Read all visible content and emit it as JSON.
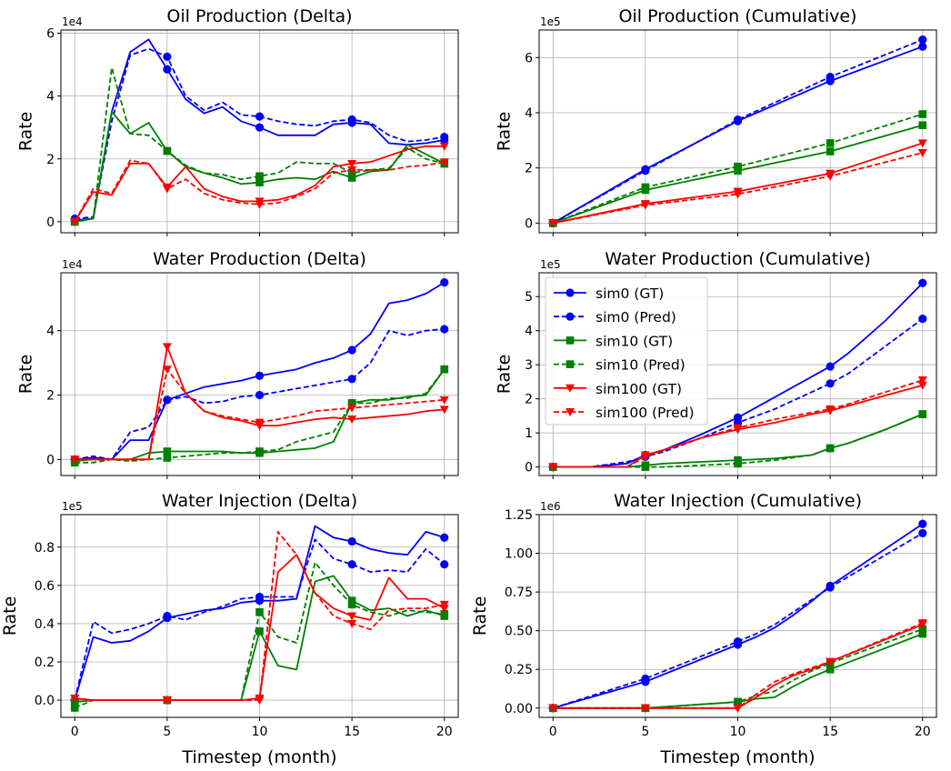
{
  "xlabel": "Timestep (month)",
  "ylabel": "Rate",
  "legend": {
    "location": "upper-left of Water Production (Cumulative)",
    "entries": [
      {
        "label": "sim0 (GT)",
        "color": "#0000ff",
        "dash": false,
        "marker": "circle"
      },
      {
        "label": "sim0 (Pred)",
        "color": "#0000ff",
        "dash": true,
        "marker": "circle"
      },
      {
        "label": "sim10 (GT)",
        "color": "#008000",
        "dash": false,
        "marker": "square"
      },
      {
        "label": "sim10 (Pred)",
        "color": "#008000",
        "dash": true,
        "marker": "square"
      },
      {
        "label": "sim100 (GT)",
        "color": "#ff0000",
        "dash": false,
        "marker": "triangle"
      },
      {
        "label": "sim100 (Pred)",
        "color": "#ff0000",
        "dash": true,
        "marker": "triangle"
      }
    ]
  },
  "chart_data": [
    {
      "type": "line",
      "title": "Oil Production (Delta)",
      "ylabel": "Rate",
      "xlabel": "",
      "scale_label": "1e4",
      "xlim": [
        -0.75,
        20.75
      ],
      "ylim": [
        -0.35,
        6.1
      ],
      "xticks": [
        0,
        5,
        10,
        15,
        20
      ],
      "xtick_labels": [],
      "yticks": [
        0,
        2,
        4,
        6
      ],
      "ytick_labels": [
        "0",
        "2",
        "4",
        "6"
      ],
      "x": [
        0,
        1,
        2,
        3,
        4,
        5,
        6,
        7,
        8,
        9,
        10,
        11,
        12,
        13,
        14,
        15,
        16,
        17,
        18,
        19,
        20
      ],
      "markers_at": [
        0,
        5,
        10,
        15,
        20
      ],
      "series": [
        {
          "name": "sim0 (GT)",
          "values": [
            0.05,
            0.1,
            3.5,
            5.4,
            5.8,
            4.85,
            3.9,
            3.45,
            3.65,
            3.2,
            3.0,
            2.75,
            2.75,
            2.75,
            3.1,
            3.15,
            3.1,
            2.5,
            2.45,
            2.5,
            2.6
          ]
        },
        {
          "name": "sim0 (Pred)",
          "values": [
            0.1,
            0.15,
            3.2,
            5.3,
            5.5,
            5.25,
            4.0,
            3.55,
            3.8,
            3.4,
            3.35,
            3.2,
            3.1,
            3.05,
            3.2,
            3.25,
            3.15,
            2.75,
            2.55,
            2.6,
            2.7
          ]
        },
        {
          "name": "sim10 (GT)",
          "values": [
            0.0,
            0.1,
            3.5,
            2.8,
            3.15,
            2.25,
            1.75,
            1.55,
            1.4,
            1.2,
            1.25,
            1.35,
            1.4,
            1.35,
            1.6,
            1.4,
            1.6,
            1.65,
            2.45,
            2.15,
            1.85
          ]
        },
        {
          "name": "sim10 (Pred)",
          "values": [
            0.0,
            0.1,
            4.9,
            2.8,
            2.75,
            2.25,
            1.8,
            1.55,
            1.5,
            1.35,
            1.45,
            1.55,
            1.9,
            1.85,
            1.85,
            1.55,
            1.65,
            1.7,
            2.35,
            2.0,
            1.85
          ]
        },
        {
          "name": "sim100 (GT)",
          "values": [
            0.0,
            0.95,
            0.85,
            1.85,
            1.85,
            1.1,
            1.75,
            1.05,
            0.8,
            0.65,
            0.65,
            0.7,
            0.85,
            1.15,
            1.75,
            1.85,
            1.9,
            2.1,
            2.3,
            2.4,
            2.4
          ]
        },
        {
          "name": "sim100 (Pred)",
          "values": [
            0.0,
            1.05,
            0.9,
            1.95,
            1.85,
            1.05,
            1.35,
            0.9,
            0.7,
            0.6,
            0.55,
            0.6,
            0.8,
            1.05,
            1.55,
            1.65,
            1.65,
            1.65,
            1.75,
            1.8,
            1.9
          ]
        }
      ]
    },
    {
      "type": "line",
      "title": "Oil Production (Cumulative)",
      "ylabel": "Rate",
      "xlabel": "",
      "scale_label": "1e5",
      "xlim": [
        -0.75,
        20.75
      ],
      "ylim": [
        -0.35,
        7.0
      ],
      "xticks": [
        0,
        5,
        10,
        15,
        20
      ],
      "xtick_labels": [],
      "yticks": [
        0,
        2,
        4,
        6
      ],
      "ytick_labels": [
        "0",
        "2",
        "4",
        "6"
      ],
      "x": [
        0,
        5,
        10,
        15,
        20
      ],
      "markers_at": [
        0,
        5,
        10,
        15,
        20
      ],
      "series": [
        {
          "name": "sim0 (GT)",
          "values": [
            0.0,
            1.95,
            3.7,
            5.15,
            6.4
          ]
        },
        {
          "name": "sim0 (Pred)",
          "values": [
            0.0,
            1.9,
            3.75,
            5.3,
            6.65
          ]
        },
        {
          "name": "sim10 (GT)",
          "values": [
            0.0,
            1.2,
            1.9,
            2.6,
            3.55
          ]
        },
        {
          "name": "sim10 (Pred)",
          "values": [
            0.0,
            1.3,
            2.05,
            2.9,
            3.95
          ]
        },
        {
          "name": "sim100 (GT)",
          "values": [
            0.0,
            0.7,
            1.15,
            1.8,
            2.9
          ]
        },
        {
          "name": "sim100 (Pred)",
          "values": [
            0.0,
            0.65,
            1.05,
            1.7,
            2.55
          ]
        }
      ]
    },
    {
      "type": "line",
      "title": "Water Production (Delta)",
      "ylabel": "Rate",
      "xlabel": "",
      "scale_label": "1e4",
      "xlim": [
        -0.75,
        20.75
      ],
      "ylim": [
        -0.5,
        5.8
      ],
      "xticks": [
        0,
        5,
        10,
        15,
        20
      ],
      "xtick_labels": [],
      "yticks": [
        0,
        2,
        4
      ],
      "ytick_labels": [
        "0",
        "2",
        "4"
      ],
      "x": [
        0,
        1,
        2,
        3,
        4,
        5,
        6,
        7,
        8,
        9,
        10,
        11,
        12,
        13,
        14,
        15,
        16,
        17,
        18,
        19,
        20
      ],
      "markers_at": [
        0,
        5,
        10,
        15,
        20
      ],
      "series": [
        {
          "name": "sim0 (GT)",
          "values": [
            0.0,
            0.05,
            0.0,
            0.6,
            0.6,
            1.85,
            2.05,
            2.25,
            2.35,
            2.45,
            2.6,
            2.7,
            2.8,
            3.0,
            3.15,
            3.4,
            3.9,
            4.85,
            4.95,
            5.15,
            5.5
          ]
        },
        {
          "name": "sim0 (Pred)",
          "values": [
            0.0,
            0.1,
            0.0,
            0.85,
            1.0,
            1.85,
            1.95,
            1.75,
            1.8,
            1.95,
            2.0,
            2.1,
            2.2,
            2.3,
            2.4,
            2.5,
            3.0,
            4.0,
            3.85,
            4.0,
            4.05
          ]
        },
        {
          "name": "sim10 (GT)",
          "values": [
            -0.05,
            0.0,
            0.0,
            0.0,
            0.2,
            0.25,
            0.25,
            0.25,
            0.25,
            0.2,
            0.2,
            0.25,
            0.3,
            0.35,
            0.55,
            1.75,
            1.85,
            1.85,
            1.95,
            2.0,
            2.8
          ]
        },
        {
          "name": "sim10 (Pred)",
          "values": [
            -0.1,
            -0.1,
            0.0,
            -0.05,
            0.0,
            0.05,
            0.1,
            0.15,
            0.2,
            0.2,
            0.25,
            0.3,
            0.55,
            0.7,
            0.85,
            1.75,
            1.75,
            1.9,
            1.9,
            2.05,
            2.8
          ]
        },
        {
          "name": "sim100 (GT)",
          "values": [
            0.0,
            0.0,
            0.0,
            0.0,
            0.0,
            3.5,
            2.05,
            1.5,
            1.3,
            1.2,
            1.05,
            1.05,
            1.15,
            1.25,
            1.3,
            1.25,
            1.3,
            1.35,
            1.4,
            1.5,
            1.55
          ]
        },
        {
          "name": "sim100 (Pred)",
          "values": [
            0.0,
            0.0,
            0.0,
            0.0,
            0.0,
            2.8,
            2.05,
            1.5,
            1.35,
            1.25,
            1.15,
            1.25,
            1.35,
            1.5,
            1.55,
            1.6,
            1.65,
            1.7,
            1.75,
            1.8,
            1.85
          ]
        }
      ]
    },
    {
      "type": "line",
      "title": "Water Production (Cumulative)",
      "ylabel": "Rate",
      "xlabel": "",
      "scale_label": "1e5",
      "xlim": [
        -0.75,
        20.75
      ],
      "ylim": [
        -0.25,
        5.7
      ],
      "xticks": [
        0,
        5,
        10,
        15,
        20
      ],
      "xtick_labels": [],
      "yticks": [
        0,
        1,
        2,
        3,
        4,
        5
      ],
      "ytick_labels": [
        "0",
        "1",
        "2",
        "3",
        "4",
        "5"
      ],
      "x": [
        0,
        2,
        4,
        5,
        6,
        8,
        10,
        12,
        14,
        15,
        16,
        18,
        20
      ],
      "markers_at": [
        0,
        5,
        10,
        15,
        20
      ],
      "series": [
        {
          "name": "sim0 (GT)",
          "values": [
            0.0,
            0.0,
            0.1,
            0.35,
            0.5,
            0.95,
            1.45,
            2.05,
            2.65,
            2.95,
            3.35,
            4.3,
            5.4
          ]
        },
        {
          "name": "sim0 (Pred)",
          "values": [
            0.0,
            0.0,
            0.15,
            0.3,
            0.45,
            0.85,
            1.3,
            1.7,
            2.2,
            2.45,
            2.75,
            3.55,
            4.35
          ]
        },
        {
          "name": "sim10 (GT)",
          "values": [
            0.0,
            0.0,
            0.0,
            0.05,
            0.1,
            0.15,
            0.2,
            0.25,
            0.35,
            0.55,
            0.7,
            1.1,
            1.55
          ]
        },
        {
          "name": "sim10 (Pred)",
          "values": [
            0.0,
            0.0,
            0.0,
            0.0,
            0.0,
            0.05,
            0.1,
            0.2,
            0.35,
            0.55,
            0.7,
            1.1,
            1.55
          ]
        },
        {
          "name": "sim100 (GT)",
          "values": [
            0.0,
            0.0,
            0.0,
            0.35,
            0.5,
            0.85,
            1.1,
            1.3,
            1.55,
            1.65,
            1.8,
            2.1,
            2.4
          ]
        },
        {
          "name": "sim100 (Pred)",
          "values": [
            0.0,
            0.0,
            0.0,
            0.3,
            0.5,
            0.85,
            1.15,
            1.4,
            1.6,
            1.7,
            1.85,
            2.2,
            2.55
          ]
        }
      ]
    },
    {
      "type": "line",
      "title": "Water Injection (Delta)",
      "ylabel": "Rate",
      "xlabel": "Timestep (month)",
      "scale_label": "1e5",
      "xlim": [
        -0.75,
        20.75
      ],
      "ylim": [
        -0.09,
        0.97
      ],
      "xticks": [
        0,
        5,
        10,
        15,
        20
      ],
      "xtick_labels": [
        "0",
        "5",
        "10",
        "15",
        "20"
      ],
      "yticks": [
        0.0,
        0.2,
        0.4,
        0.6,
        0.8
      ],
      "ytick_labels": [
        "0.0",
        "0.2",
        "0.4",
        "0.6",
        "0.8"
      ],
      "x": [
        0,
        1,
        2,
        3,
        4,
        5,
        6,
        7,
        8,
        9,
        10,
        11,
        12,
        13,
        14,
        15,
        16,
        17,
        18,
        19,
        20
      ],
      "markers_at": [
        0,
        5,
        10,
        15,
        20
      ],
      "series": [
        {
          "name": "sim0 (GT)",
          "values": [
            0.0,
            0.33,
            0.3,
            0.31,
            0.36,
            0.43,
            0.45,
            0.47,
            0.48,
            0.51,
            0.52,
            0.52,
            0.53,
            0.91,
            0.85,
            0.83,
            0.79,
            0.77,
            0.76,
            0.88,
            0.85
          ]
        },
        {
          "name": "sim0 (Pred)",
          "values": [
            0.0,
            0.41,
            0.35,
            0.37,
            0.4,
            0.44,
            0.42,
            0.46,
            0.49,
            0.53,
            0.54,
            0.54,
            0.54,
            0.84,
            0.74,
            0.71,
            0.67,
            0.68,
            0.67,
            0.79,
            0.71
          ]
        },
        {
          "name": "sim10 (GT)",
          "values": [
            -0.01,
            0.0,
            0.0,
            0.0,
            0.0,
            0.0,
            0.0,
            0.0,
            0.0,
            0.0,
            0.36,
            0.18,
            0.16,
            0.62,
            0.65,
            0.52,
            0.47,
            0.48,
            0.44,
            0.47,
            0.44
          ]
        },
        {
          "name": "sim10 (Pred)",
          "values": [
            -0.04,
            0.0,
            0.0,
            0.0,
            0.0,
            0.0,
            0.0,
            0.0,
            0.0,
            0.0,
            0.46,
            0.33,
            0.3,
            0.72,
            0.6,
            0.5,
            0.46,
            0.44,
            0.47,
            0.46,
            0.45
          ]
        },
        {
          "name": "sim100 (GT)",
          "values": [
            0.01,
            0.0,
            0.0,
            0.0,
            0.0,
            0.0,
            0.0,
            0.0,
            0.0,
            0.0,
            0.01,
            0.67,
            0.76,
            0.56,
            0.48,
            0.44,
            0.42,
            0.64,
            0.53,
            0.53,
            0.48
          ]
        },
        {
          "name": "sim100 (Pred)",
          "values": [
            0.01,
            0.0,
            0.0,
            0.0,
            0.0,
            0.0,
            0.0,
            0.0,
            0.0,
            0.0,
            0.0,
            0.88,
            0.76,
            0.56,
            0.44,
            0.4,
            0.37,
            0.47,
            0.48,
            0.48,
            0.5
          ]
        }
      ]
    },
    {
      "type": "line",
      "title": "Water Injection (Cumulative)",
      "ylabel": "Rate",
      "xlabel": "Timestep (month)",
      "scale_label": "1e6",
      "xlim": [
        -0.75,
        20.75
      ],
      "ylim": [
        -0.06,
        1.25
      ],
      "xticks": [
        0,
        5,
        10,
        15,
        20
      ],
      "xtick_labels": [
        "0",
        "5",
        "10",
        "15",
        "20"
      ],
      "yticks": [
        0.0,
        0.25,
        0.5,
        0.75,
        1.0,
        1.25
      ],
      "ytick_labels": [
        "0.00",
        "0.25",
        "0.50",
        "0.75",
        "1.00",
        "1.25"
      ],
      "x": [
        0,
        5,
        10,
        11,
        12,
        13,
        14,
        15,
        20
      ],
      "markers_at": [
        0,
        5,
        10,
        15,
        20
      ],
      "series": [
        {
          "name": "sim0 (GT)",
          "values": [
            0.0,
            0.17,
            0.41,
            0.46,
            0.52,
            0.6,
            0.69,
            0.79,
            1.19
          ]
        },
        {
          "name": "sim0 (Pred)",
          "values": [
            0.0,
            0.19,
            0.43,
            0.48,
            0.54,
            0.62,
            0.7,
            0.78,
            1.13
          ]
        },
        {
          "name": "sim10 (GT)",
          "values": [
            0.0,
            0.0,
            0.04,
            0.06,
            0.07,
            0.14,
            0.2,
            0.25,
            0.48
          ]
        },
        {
          "name": "sim10 (Pred)",
          "values": [
            0.0,
            0.0,
            0.04,
            0.08,
            0.11,
            0.18,
            0.24,
            0.29,
            0.51
          ]
        },
        {
          "name": "sim100 (GT)",
          "values": [
            0.0,
            0.0,
            0.0,
            0.07,
            0.15,
            0.21,
            0.25,
            0.3,
            0.54
          ]
        },
        {
          "name": "sim100 (Pred)",
          "values": [
            0.0,
            0.0,
            0.0,
            0.09,
            0.17,
            0.22,
            0.26,
            0.3,
            0.55
          ]
        }
      ]
    }
  ]
}
